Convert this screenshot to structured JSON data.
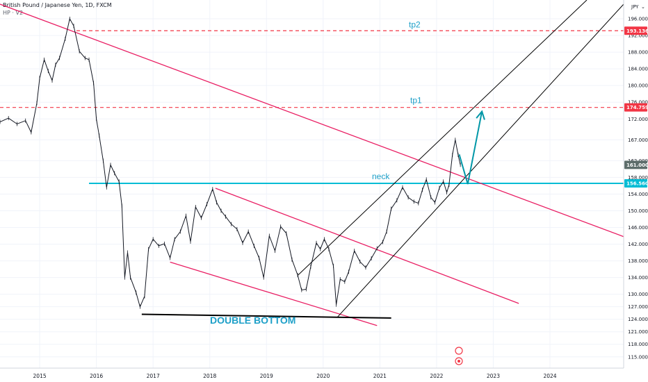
{
  "header": {
    "symbol": "British Pound / Japanese Yen, 1D, FXCM",
    "indicator": "HP · V2"
  },
  "currency_label": "JPY",
  "currency_icon": "chevron-down-icon",
  "colors": {
    "price": "#131722",
    "trend_magenta": "#e91e63",
    "neck": "#00bcd4",
    "target_dash": "#f23645",
    "support": "#000000",
    "arrow": "#0097a7",
    "current_tag": "#5d6d6b",
    "annotation_text": "#1ea0c8"
  },
  "chart_data": {
    "type": "line",
    "title": "",
    "xlabel": "",
    "ylabel": "",
    "x_ticks": [
      "2015",
      "2016",
      "2017",
      "2018",
      "2019",
      "2020",
      "2021",
      "2022",
      "2023",
      "2024"
    ],
    "y_ticks": [
      115,
      118,
      121,
      124,
      127,
      130,
      134,
      138,
      142,
      146,
      150,
      154,
      158,
      162,
      167,
      172,
      176,
      180,
      184,
      188,
      192,
      196
    ],
    "y_tick_labels": [
      "115.000",
      "118.000",
      "121.000",
      "124.000",
      "127.000",
      "130.000",
      "134.000",
      "138.000",
      "142.000",
      "146.000",
      "150.000",
      "154.000",
      "158.000",
      "162.000",
      "167.000",
      "172.000",
      "176.000",
      "180.000",
      "184.000",
      "188.000",
      "192.000",
      "196.000"
    ],
    "xlim": [
      2014.3,
      2025.3
    ],
    "ylim": [
      112.3,
      200.5
    ],
    "grid": true,
    "series": [
      {
        "values": [
          [
            2014.3,
            171.3
          ],
          [
            2014.45,
            172.2
          ],
          [
            2014.6,
            170.8
          ],
          [
            2014.75,
            171.6
          ],
          [
            2014.85,
            168.8
          ],
          [
            2014.95,
            175.8
          ],
          [
            2015.0,
            181.8
          ],
          [
            2015.08,
            186.2
          ],
          [
            2015.15,
            183.5
          ],
          [
            2015.22,
            181.2
          ],
          [
            2015.28,
            185.0
          ],
          [
            2015.35,
            186.6
          ],
          [
            2015.45,
            191.2
          ],
          [
            2015.53,
            196.0
          ],
          [
            2015.6,
            194.3
          ],
          [
            2015.7,
            188.2
          ],
          [
            2015.8,
            186.6
          ],
          [
            2015.87,
            186.2
          ],
          [
            2015.95,
            180.6
          ],
          [
            2016.0,
            172.0
          ],
          [
            2016.05,
            168.0
          ],
          [
            2016.12,
            162.0
          ],
          [
            2016.18,
            155.6
          ],
          [
            2016.25,
            161.0
          ],
          [
            2016.32,
            159.0
          ],
          [
            2016.4,
            157.0
          ],
          [
            2016.45,
            151.2
          ],
          [
            2016.5,
            134.0
          ],
          [
            2016.55,
            140.0
          ],
          [
            2016.6,
            134.0
          ],
          [
            2016.7,
            130.4
          ],
          [
            2016.77,
            127.0
          ],
          [
            2016.85,
            129.5
          ],
          [
            2016.92,
            140.8
          ],
          [
            2017.0,
            143.2
          ],
          [
            2017.1,
            141.6
          ],
          [
            2017.2,
            142.1
          ],
          [
            2017.3,
            138.7
          ],
          [
            2017.38,
            143.2
          ],
          [
            2017.48,
            145.0
          ],
          [
            2017.58,
            148.8
          ],
          [
            2017.66,
            142.6
          ],
          [
            2017.75,
            150.9
          ],
          [
            2017.85,
            148.3
          ],
          [
            2017.95,
            151.6
          ],
          [
            2018.05,
            155.2
          ],
          [
            2018.12,
            152.0
          ],
          [
            2018.2,
            150.0
          ],
          [
            2018.28,
            148.6
          ],
          [
            2018.38,
            146.8
          ],
          [
            2018.48,
            145.6
          ],
          [
            2018.58,
            142.3
          ],
          [
            2018.68,
            145.0
          ],
          [
            2018.78,
            141.6
          ],
          [
            2018.87,
            138.7
          ],
          [
            2018.95,
            134.0
          ],
          [
            2019.05,
            144.0
          ],
          [
            2019.15,
            140.4
          ],
          [
            2019.25,
            146.2
          ],
          [
            2019.35,
            144.6
          ],
          [
            2019.45,
            138.3
          ],
          [
            2019.55,
            134.6
          ],
          [
            2019.62,
            131.0
          ],
          [
            2019.7,
            131.2
          ],
          [
            2019.78,
            136.6
          ],
          [
            2019.88,
            142.3
          ],
          [
            2019.95,
            140.8
          ],
          [
            2020.02,
            143.2
          ],
          [
            2020.1,
            140.8
          ],
          [
            2020.18,
            136.8
          ],
          [
            2020.23,
            127.5
          ],
          [
            2020.3,
            133.6
          ],
          [
            2020.38,
            133.0
          ],
          [
            2020.45,
            135.4
          ],
          [
            2020.55,
            140.4
          ],
          [
            2020.65,
            137.8
          ],
          [
            2020.75,
            136.4
          ],
          [
            2020.85,
            138.6
          ],
          [
            2020.95,
            141.0
          ],
          [
            2021.05,
            142.5
          ],
          [
            2021.12,
            145.0
          ],
          [
            2021.2,
            150.5
          ],
          [
            2021.3,
            152.5
          ],
          [
            2021.4,
            155.6
          ],
          [
            2021.5,
            153.2
          ],
          [
            2021.6,
            152.2
          ],
          [
            2021.68,
            151.8
          ],
          [
            2021.75,
            155.0
          ],
          [
            2021.82,
            157.5
          ],
          [
            2021.9,
            153.2
          ],
          [
            2021.97,
            152.0
          ],
          [
            2022.05,
            155.5
          ],
          [
            2022.12,
            157.0
          ],
          [
            2022.18,
            154.4
          ],
          [
            2022.22,
            156.2
          ],
          [
            2022.28,
            163.4
          ],
          [
            2022.33,
            167.0
          ],
          [
            2022.38,
            163.4
          ],
          [
            2022.42,
            161.0
          ]
        ]
      }
    ],
    "annotations": [
      {
        "label": "tp2",
        "value": 193.136,
        "tag": "193.136"
      },
      {
        "label": "tp1",
        "value": 174.759,
        "tag": "174.759"
      },
      {
        "label": "neck",
        "value": 156.56,
        "tag": "156.560"
      },
      {
        "label": "current",
        "value": 161.0,
        "tag": "161.000"
      },
      {
        "label": "DOUBLE BOTTOM"
      }
    ],
    "trendlines": [
      {
        "kind": "descending-resistance",
        "from": [
          2014.3,
          199.5
        ],
        "to": [
          2025.3,
          143.8
        ]
      },
      {
        "kind": "channel-upper",
        "from": [
          2018.1,
          155.4
        ],
        "to": [
          2023.45,
          127.8
        ]
      },
      {
        "kind": "channel-lower",
        "from": [
          2017.3,
          137.7
        ],
        "to": [
          2020.95,
          122.5
        ]
      },
      {
        "kind": "support",
        "from": [
          2016.8,
          125.2
        ],
        "to": [
          2021.2,
          124.3
        ]
      },
      {
        "kind": "rising-upper",
        "from": [
          2019.55,
          134.5
        ],
        "to": [
          2024.65,
          200.5
        ]
      },
      {
        "kind": "rising-lower",
        "from": [
          2020.25,
          124.5
        ],
        "to": [
          2025.3,
          199.5
        ]
      }
    ],
    "projection": [
      [
        2022.4,
        163.5
      ],
      [
        2022.55,
        156.4
      ],
      [
        2022.8,
        173.8
      ]
    ]
  }
}
